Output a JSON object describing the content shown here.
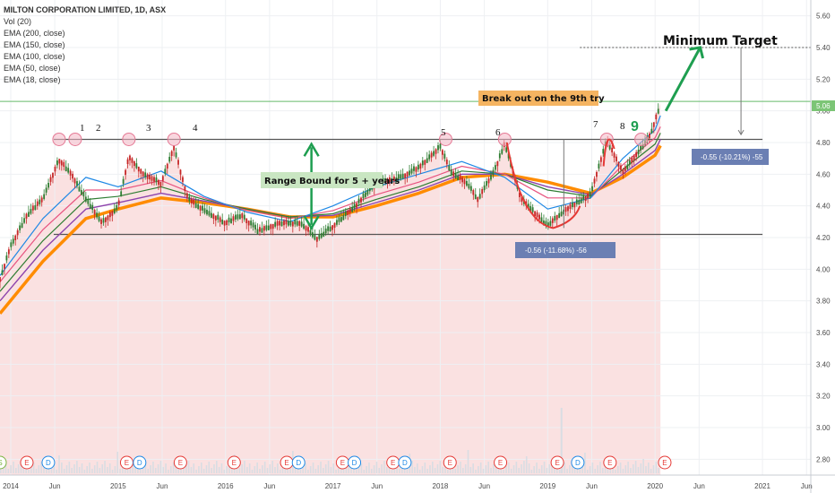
{
  "legend": {
    "title": "MILTON CORPORATION LIMITED, 1D, ASX",
    "items": [
      "Vol (20)",
      "EMA (200, close)",
      "EMA (150, close)",
      "EMA (100, close)",
      "EMA (50, close)",
      "EMA (18, close)"
    ]
  },
  "colors": {
    "ema200": "#ff8c00",
    "ema150": "#8e44ad",
    "ema100": "#2e7d32",
    "ema50": "#e75480",
    "ema18": "#1e88e5",
    "area": "#f8d7d7",
    "candle_up": "#2e7d32",
    "candle_down": "#c62828",
    "arrow": "#1e9e50",
    "cup": "#e53935",
    "breakout_box": "#f5b461",
    "range_box": "#c9e6c2",
    "measure_box": "#6b7fb3",
    "current_price": "#66bb6a",
    "price_tag": "#7cc576"
  },
  "annotations": {
    "minimum_target": "Minimum Target",
    "breakout": "Break out on the 9th try",
    "range_bound": "Range Bound for 5 + years",
    "measure_top": "-0.55 (-10.21%) -55",
    "measure_bottom": "-0.56 (-11.68%) -56",
    "touches": [
      "1",
      "2",
      "3",
      "4",
      "5",
      "6",
      "7",
      "8",
      "9"
    ],
    "current_price": "5.06"
  },
  "chart_data": {
    "type": "line",
    "title": "MILTON CORPORATION LIMITED, 1D, ASX",
    "xlabel": "",
    "ylabel": "",
    "x_tick_labels": [
      "2014",
      "Jun",
      "2015",
      "Jun",
      "2016",
      "Jun",
      "2017",
      "Jun",
      "2018",
      "Jun",
      "2019",
      "Jun",
      "2020",
      "Jun",
      "2021",
      "Jun"
    ],
    "y_tick_labels": [
      "5.60",
      "5.40",
      "5.20",
      "5.00",
      "4.80",
      "4.60",
      "4.40",
      "4.20",
      "4.00",
      "3.80",
      "3.60",
      "3.40",
      "3.20",
      "3.00",
      "2.80"
    ],
    "ylim": [
      2.7,
      5.7
    ],
    "xlim": [
      2013.9,
      2021.45
    ],
    "grid": true,
    "levels": {
      "resistance": 4.82,
      "support": 4.22,
      "target": 5.4,
      "current": 5.06
    },
    "touch_points": [
      {
        "label": "1",
        "x": 2014.45,
        "y": 4.82
      },
      {
        "label": "2",
        "x": 2014.6,
        "y": 4.82
      },
      {
        "label": "3",
        "x": 2015.1,
        "y": 4.82
      },
      {
        "label": "4",
        "x": 2015.52,
        "y": 4.82
      },
      {
        "label": "5",
        "x": 2018.05,
        "y": 4.82
      },
      {
        "label": "6",
        "x": 2018.6,
        "y": 4.82
      },
      {
        "label": "7",
        "x": 2019.55,
        "y": 4.82
      },
      {
        "label": "8",
        "x": 2019.87,
        "y": 4.82
      },
      {
        "label": "9",
        "x": 2019.98,
        "y": 4.95
      }
    ],
    "series": [
      {
        "name": "Price",
        "x": [
          2013.9,
          2014.0,
          2014.15,
          2014.3,
          2014.45,
          2014.55,
          2014.7,
          2014.85,
          2015.0,
          2015.1,
          2015.25,
          2015.4,
          2015.52,
          2015.65,
          2015.8,
          2016.0,
          2016.15,
          2016.3,
          2016.5,
          2016.7,
          2016.85,
          2017.0,
          2017.2,
          2017.4,
          2017.6,
          2017.8,
          2018.0,
          2018.1,
          2018.25,
          2018.35,
          2018.5,
          2018.6,
          2018.75,
          2018.9,
          2019.0,
          2019.1,
          2019.25,
          2019.4,
          2019.55,
          2019.7,
          2019.85,
          2019.95,
          2020.05
        ],
        "y": [
          3.95,
          4.15,
          4.35,
          4.45,
          4.7,
          4.62,
          4.45,
          4.3,
          4.4,
          4.72,
          4.6,
          4.55,
          4.78,
          4.45,
          4.38,
          4.3,
          4.35,
          4.25,
          4.3,
          4.3,
          4.2,
          4.28,
          4.4,
          4.55,
          4.58,
          4.65,
          4.78,
          4.62,
          4.55,
          4.45,
          4.62,
          4.8,
          4.45,
          4.35,
          4.28,
          4.35,
          4.42,
          4.48,
          4.82,
          4.62,
          4.75,
          4.85,
          5.05
        ]
      },
      {
        "name": "EMA (200, close)",
        "x": [
          2013.9,
          2014.3,
          2014.7,
          2015.0,
          2015.4,
          2015.8,
          2016.2,
          2016.6,
          2017.0,
          2017.4,
          2017.8,
          2018.2,
          2018.6,
          2019.0,
          2019.4,
          2019.7,
          2020.0,
          2020.05
        ],
        "y": [
          3.72,
          4.05,
          4.32,
          4.38,
          4.45,
          4.42,
          4.38,
          4.33,
          4.33,
          4.4,
          4.48,
          4.58,
          4.6,
          4.55,
          4.48,
          4.58,
          4.72,
          4.78
        ]
      },
      {
        "name": "EMA (150, close)",
        "x": [
          2013.9,
          2014.3,
          2014.7,
          2015.0,
          2015.4,
          2015.8,
          2016.2,
          2016.6,
          2017.0,
          2017.4,
          2017.8,
          2018.2,
          2018.6,
          2019.0,
          2019.4,
          2019.7,
          2020.0,
          2020.05
        ],
        "y": [
          3.8,
          4.12,
          4.38,
          4.42,
          4.48,
          4.43,
          4.38,
          4.33,
          4.34,
          4.42,
          4.5,
          4.6,
          4.6,
          4.52,
          4.47,
          4.6,
          4.75,
          4.82
        ]
      },
      {
        "name": "EMA (100, close)",
        "x": [
          2013.9,
          2014.3,
          2014.7,
          2015.0,
          2015.4,
          2015.8,
          2016.2,
          2016.6,
          2017.0,
          2017.4,
          2017.8,
          2018.2,
          2018.6,
          2019.0,
          2019.4,
          2019.7,
          2020.0,
          2020.05
        ],
        "y": [
          3.86,
          4.18,
          4.44,
          4.46,
          4.52,
          4.44,
          4.38,
          4.33,
          4.35,
          4.44,
          4.52,
          4.62,
          4.6,
          4.5,
          4.46,
          4.63,
          4.79,
          4.86
        ]
      },
      {
        "name": "EMA (50, close)",
        "x": [
          2013.9,
          2014.3,
          2014.7,
          2015.0,
          2015.4,
          2015.8,
          2016.2,
          2016.6,
          2017.0,
          2017.4,
          2017.8,
          2018.2,
          2018.6,
          2019.0,
          2019.4,
          2019.7,
          2020.0,
          2020.05
        ],
        "y": [
          3.92,
          4.25,
          4.5,
          4.5,
          4.56,
          4.45,
          4.37,
          4.32,
          4.37,
          4.47,
          4.55,
          4.65,
          4.6,
          4.45,
          4.45,
          4.66,
          4.83,
          4.9
        ]
      },
      {
        "name": "EMA (18, close)",
        "x": [
          2013.9,
          2014.3,
          2014.7,
          2015.0,
          2015.4,
          2015.8,
          2016.2,
          2016.6,
          2017.0,
          2017.4,
          2017.8,
          2018.2,
          2018.6,
          2019.0,
          2019.4,
          2019.7,
          2020.0,
          2020.05
        ],
        "y": [
          3.96,
          4.32,
          4.58,
          4.52,
          4.62,
          4.46,
          4.36,
          4.3,
          4.4,
          4.52,
          4.6,
          4.68,
          4.58,
          4.38,
          4.45,
          4.7,
          4.88,
          4.97
        ]
      }
    ],
    "volume_markers": {
      "events": [
        {
          "type": "S",
          "x": 2013.9
        },
        {
          "type": "E",
          "x": 2014.15
        },
        {
          "type": "D",
          "x": 2014.35
        },
        {
          "type": "E",
          "x": 2015.08
        },
        {
          "type": "D",
          "x": 2015.2
        },
        {
          "type": "E",
          "x": 2015.58
        },
        {
          "type": "E",
          "x": 2016.08
        },
        {
          "type": "E",
          "x": 2016.57
        },
        {
          "type": "D",
          "x": 2016.68
        },
        {
          "type": "E",
          "x": 2017.09
        },
        {
          "type": "D",
          "x": 2017.2
        },
        {
          "type": "E",
          "x": 2017.56
        },
        {
          "type": "D",
          "x": 2017.67
        },
        {
          "type": "E",
          "x": 2018.09
        },
        {
          "type": "E",
          "x": 2018.56
        },
        {
          "type": "E",
          "x": 2019.09
        },
        {
          "type": "D",
          "x": 2019.28
        },
        {
          "type": "E",
          "x": 2019.58
        },
        {
          "type": "E",
          "x": 2020.09
        }
      ]
    }
  }
}
